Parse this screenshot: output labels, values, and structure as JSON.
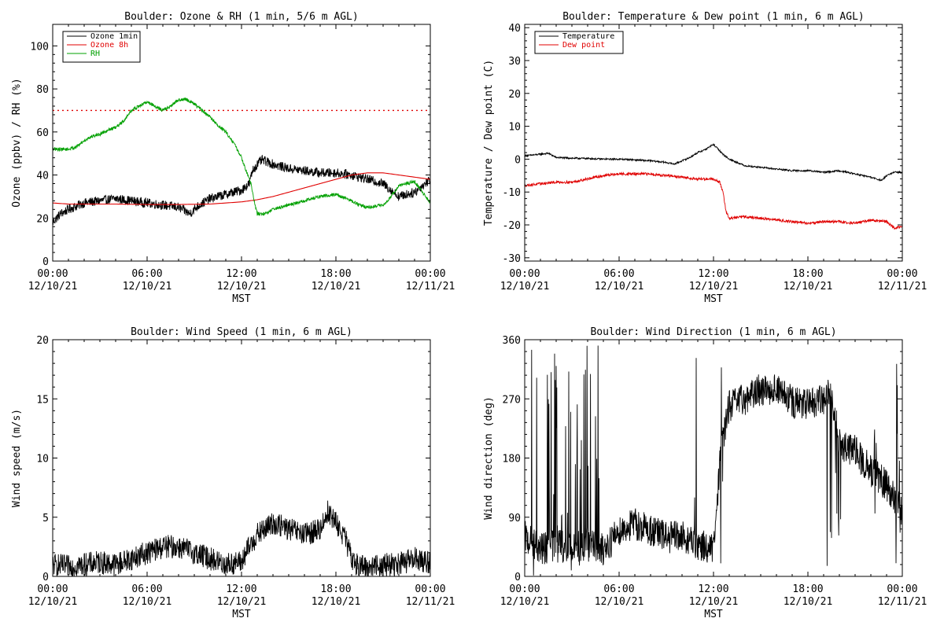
{
  "colors": {
    "ozone_1min": "#000000",
    "ozone_8h": "#e00000",
    "rh": "#00a000",
    "temperature": "#000000",
    "dew_point": "#e00000",
    "wind": "#000000"
  },
  "chart_data": [
    {
      "id": "ozone-rh",
      "type": "line",
      "title": "Boulder: Ozone & RH (1 min, 5/6 m AGL)",
      "xlabel": "MST",
      "ylabel": "Ozone (ppbv) / RH (%)",
      "x_ticks": [
        {
          "time": "00:00",
          "date": "12/10/21"
        },
        {
          "time": "06:00",
          "date": "12/10/21"
        },
        {
          "time": "12:00",
          "date": "12/10/21"
        },
        {
          "time": "18:00",
          "date": "12/10/21"
        },
        {
          "time": "00:00",
          "date": "12/11/21"
        }
      ],
      "xlim": [
        0,
        24
      ],
      "ylim": [
        0,
        110
      ],
      "y_ticks": [
        0,
        20,
        40,
        60,
        80,
        100
      ],
      "legend": "top-left",
      "threshold": 70,
      "series": [
        {
          "name": "Ozone 1min",
          "color_key": "ozone_1min",
          "noise": 2.2,
          "x": [
            0,
            0.5,
            1,
            2,
            3,
            4,
            5,
            6,
            7,
            8,
            8.7,
            9.3,
            10,
            11,
            12,
            12.5,
            12.7,
            13,
            13.3,
            14,
            15,
            16,
            17,
            18,
            19,
            20,
            21,
            22,
            23,
            23.5,
            24
          ],
          "y": [
            18,
            22,
            24,
            27,
            28,
            29,
            28,
            27,
            26,
            25,
            22,
            26,
            29,
            31,
            33,
            36,
            42,
            45,
            47,
            45,
            43,
            42,
            41,
            41,
            40,
            38,
            36,
            30,
            32,
            35,
            38
          ]
        },
        {
          "name": "Ozone 8h",
          "color_key": "ozone_8h",
          "noise": 0,
          "x": [
            0,
            1,
            2,
            4,
            6,
            8,
            10,
            11,
            12,
            13,
            14,
            15,
            16,
            17,
            18,
            19,
            20,
            21,
            22,
            23,
            24
          ],
          "y": [
            27,
            26.5,
            26.5,
            26.5,
            26.3,
            26.3,
            26.5,
            27,
            27.5,
            28.5,
            30,
            32,
            34,
            36,
            38,
            40,
            41,
            41,
            40,
            39,
            38
          ]
        },
        {
          "name": "RH",
          "color_key": "rh",
          "noise": 0.8,
          "x": [
            0,
            0.5,
            1,
            1.5,
            2,
            2.5,
            3,
            3.5,
            4,
            4.5,
            5,
            5.5,
            6,
            6.5,
            7,
            7.5,
            8,
            8.5,
            9,
            9.5,
            10,
            10.5,
            11,
            11.5,
            12,
            12.3,
            12.6,
            12.8,
            13,
            13.5,
            14,
            15,
            16,
            17,
            18,
            19,
            19.5,
            20,
            21,
            21.5,
            22,
            23,
            23.5,
            24
          ],
          "y": [
            52,
            52,
            52,
            53,
            56,
            58,
            59,
            61,
            62,
            65,
            70,
            72,
            74,
            72,
            70,
            72,
            75,
            75,
            73,
            70,
            67,
            63,
            60,
            55,
            48,
            42,
            36,
            28,
            22,
            22,
            24,
            26,
            28,
            30,
            31,
            28,
            26,
            25,
            26,
            30,
            35,
            37,
            32,
            27
          ]
        }
      ]
    },
    {
      "id": "temp-dew",
      "type": "line",
      "title": "Boulder: Temperature & Dew point (1 min, 6 m AGL)",
      "xlabel": "MST",
      "ylabel": "Temperature / Dew point (C)",
      "x_ticks": [
        {
          "time": "00:00",
          "date": "12/10/21"
        },
        {
          "time": "06:00",
          "date": "12/10/21"
        },
        {
          "time": "12:00",
          "date": "12/10/21"
        },
        {
          "time": "18:00",
          "date": "12/10/21"
        },
        {
          "time": "00:00",
          "date": "12/11/21"
        }
      ],
      "xlim": [
        0,
        24
      ],
      "ylim": [
        -31,
        41
      ],
      "y_ticks": [
        -30,
        -20,
        -10,
        0,
        10,
        20,
        30,
        40
      ],
      "legend": "top-left",
      "series": [
        {
          "name": "Temperature",
          "color_key": "temperature",
          "noise": 0.25,
          "x": [
            0,
            1,
            1.5,
            2,
            3,
            4,
            5,
            6,
            7,
            8,
            9,
            9.5,
            10,
            10.5,
            11,
            11.5,
            12,
            12.3,
            12.6,
            13,
            13.5,
            14,
            15,
            16,
            17,
            18,
            19,
            20,
            21,
            22,
            22.7,
            23,
            23.5,
            24
          ],
          "y": [
            1,
            1.5,
            1.8,
            0.5,
            0.3,
            0.2,
            0,
            0,
            -0.2,
            -0.5,
            -1,
            -1.5,
            -0.5,
            0.5,
            2,
            3,
            4.5,
            3,
            1.5,
            0,
            -1,
            -2,
            -2.5,
            -3,
            -3.5,
            -3.5,
            -4,
            -3.5,
            -4.5,
            -5.5,
            -6.5,
            -5,
            -4,
            -4
          ]
        },
        {
          "name": "Dew point",
          "color_key": "dew_point",
          "noise": 0.4,
          "x": [
            0,
            1,
            2,
            3,
            4,
            5,
            6,
            7,
            8,
            9,
            10,
            11,
            12,
            12.4,
            12.6,
            12.8,
            13,
            14,
            15,
            16,
            17,
            18,
            19,
            20,
            21,
            22,
            23,
            23.5,
            24
          ],
          "y": [
            -8,
            -7.5,
            -7,
            -7,
            -6,
            -5,
            -4.5,
            -4.5,
            -4.5,
            -5,
            -5.5,
            -6,
            -6,
            -7,
            -10,
            -16,
            -18,
            -17.5,
            -18,
            -18.5,
            -19,
            -19.5,
            -19,
            -19,
            -19.5,
            -18.5,
            -19,
            -21,
            -20.5
          ]
        }
      ]
    },
    {
      "id": "wind-speed",
      "type": "line",
      "title": "Boulder: Wind Speed (1 min, 6 m AGL)",
      "xlabel": "MST",
      "ylabel": "Wind speed (m/s)",
      "x_ticks": [
        {
          "time": "00:00",
          "date": "12/10/21"
        },
        {
          "time": "06:00",
          "date": "12/10/21"
        },
        {
          "time": "12:00",
          "date": "12/10/21"
        },
        {
          "time": "18:00",
          "date": "12/10/21"
        },
        {
          "time": "00:00",
          "date": "12/11/21"
        }
      ],
      "xlim": [
        0,
        24
      ],
      "ylim": [
        0,
        20
      ],
      "y_ticks": [
        0,
        5,
        10,
        15,
        20
      ],
      "series": [
        {
          "name": "",
          "color_key": "wind",
          "noise": 1.0,
          "min": 0,
          "x": [
            0,
            1,
            2,
            3,
            4,
            5,
            6,
            7,
            8,
            9,
            10,
            11,
            12,
            12.5,
            13,
            14,
            15,
            16,
            17,
            17.5,
            18,
            18.5,
            19,
            19.5,
            20,
            21,
            22,
            23,
            24
          ],
          "y": [
            1,
            0.8,
            1,
            1.2,
            1,
            1.5,
            2,
            2.5,
            2.5,
            2,
            1.5,
            1,
            1.2,
            2.5,
            3.5,
            4.5,
            4,
            3.5,
            4,
            5.5,
            4.5,
            3.5,
            1.5,
            0.8,
            0.8,
            1,
            1,
            1.5,
            1.2
          ]
        }
      ]
    },
    {
      "id": "wind-direction",
      "type": "line",
      "title": "Boulder: Wind Direction (1 min, 6 m AGL)",
      "xlabel": "MST",
      "ylabel": "Wind direction (deg)",
      "x_ticks": [
        {
          "time": "00:00",
          "date": "12/10/21"
        },
        {
          "time": "06:00",
          "date": "12/10/21"
        },
        {
          "time": "12:00",
          "date": "12/10/21"
        },
        {
          "time": "18:00",
          "date": "12/10/21"
        },
        {
          "time": "00:00",
          "date": "12/11/21"
        }
      ],
      "xlim": [
        0,
        24
      ],
      "ylim": [
        0,
        360
      ],
      "y_ticks": [
        0,
        90,
        180,
        270,
        360
      ],
      "series": [
        {
          "name": "",
          "color_key": "wind",
          "noise": 25,
          "min": 0,
          "max": 360,
          "spikes": [
            [
              0.4,
              0.8
            ],
            [
              1.4,
              2.4
            ],
            [
              2.6,
              3.0
            ],
            [
              3.2,
              4.2
            ],
            [
              4.4,
              4.8
            ],
            [
              10.8,
              11.0
            ],
            [
              12.4,
              12.6
            ],
            [
              19.2,
              19.5
            ],
            [
              19.7,
              20.1
            ],
            [
              22.2,
              22.4
            ],
            [
              23.6,
              23.9
            ]
          ],
          "x": [
            0,
            1,
            2,
            3,
            4,
            5,
            6,
            7,
            8,
            9,
            10,
            11,
            12,
            12.5,
            13,
            14,
            15,
            16,
            17,
            18,
            19,
            19.5,
            20,
            21,
            22,
            23,
            24
          ],
          "y": [
            60,
            40,
            50,
            40,
            50,
            40,
            70,
            80,
            70,
            60,
            60,
            50,
            40,
            200,
            260,
            270,
            285,
            285,
            265,
            260,
            270,
            280,
            200,
            190,
            160,
            140,
            100
          ]
        }
      ]
    }
  ]
}
